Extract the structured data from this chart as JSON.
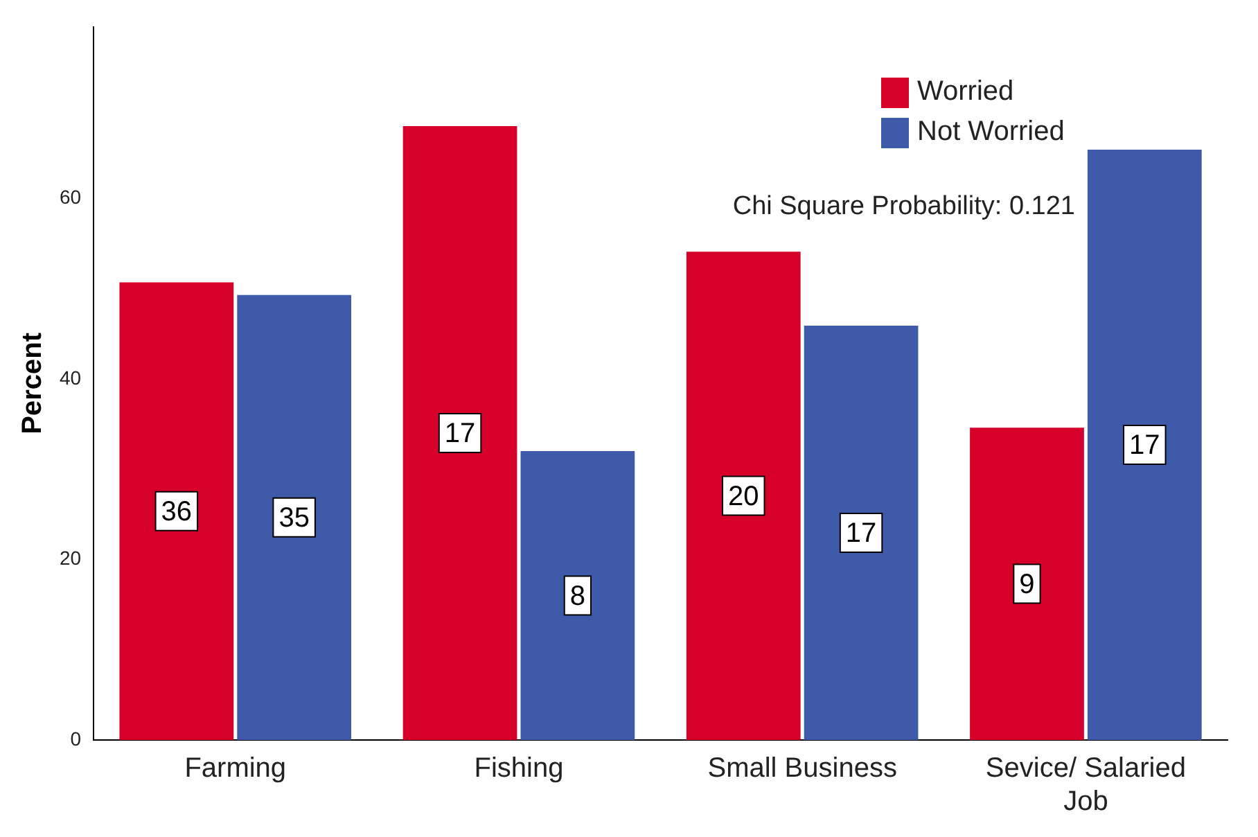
{
  "chart_data": {
    "type": "bar",
    "ylabel": "Percent",
    "categories": [
      "Farming",
      "Fishing",
      "Small Business",
      "Sevice/ Salaried Job"
    ],
    "series": [
      {
        "name": "Worried",
        "color": "#d6002b",
        "values": [
          50.7,
          68,
          54.1,
          34.6
        ]
      },
      {
        "name": "Not Worried",
        "color": "#3e5aa8",
        "values": [
          49.3,
          32,
          45.9,
          65.4
        ]
      }
    ],
    "ylim": [
      0,
      79
    ],
    "yticks": [
      0,
      20,
      40,
      60
    ],
    "grid": false,
    "legend": "top right",
    "annotations": [
      "Chi Square Probability: 0.121",
      {
        "text": "36",
        "x": "Farming",
        "y": 25.35
      },
      {
        "text": "35",
        "x": "Farming",
        "y": 24.65
      },
      {
        "text": "17",
        "x": "Fishing",
        "y": 34
      },
      {
        "text": "8",
        "x": "Fishing",
        "y": 16
      },
      {
        "text": "20",
        "x": "Small Business",
        "y": 27.05
      },
      {
        "text": "17",
        "x": "Small Business",
        "y": 22.95
      },
      {
        "text": "9",
        "x": "Sevice/ Salaried Job",
        "y": 17.3
      },
      {
        "text": "17",
        "x": "Sevice/ Salaried Job",
        "y": 32.7
      }
    ]
  }
}
